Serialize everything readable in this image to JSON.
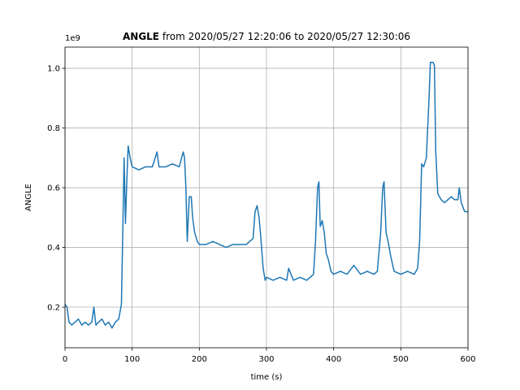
{
  "chart_data": {
    "type": "line",
    "title_bold": "ANGLE",
    "title": "from 2020/05/27 12:20:06 to 2020/05/27 12:30:06",
    "offset_label": "1e9",
    "xlabel": "time (s)",
    "ylabel": "ANGLE",
    "color": "#1f77b4",
    "grid": true,
    "xlim": [
      0,
      600
    ],
    "xticks": [
      0,
      100,
      200,
      300,
      400,
      500,
      600
    ],
    "ylim": [
      0.064,
      1.071
    ],
    "yticks": [
      0.2,
      0.4,
      0.6,
      0.8,
      {
        "value": 1,
        "label": "1.0"
      }
    ],
    "x": [
      0,
      3,
      6,
      10,
      15,
      20,
      25,
      30,
      35,
      40,
      43,
      46,
      50,
      55,
      60,
      65,
      70,
      75,
      80,
      84,
      86,
      88,
      90,
      92,
      94,
      97,
      100,
      110,
      120,
      130,
      137,
      140,
      150,
      160,
      170,
      176,
      178,
      180,
      182,
      185,
      188,
      190,
      193,
      197,
      200,
      210,
      220,
      230,
      240,
      250,
      260,
      270,
      280,
      283,
      286,
      289,
      292,
      295,
      298,
      300,
      310,
      320,
      330,
      333,
      340,
      350,
      360,
      370,
      373,
      376,
      378,
      380,
      383,
      386,
      389,
      392,
      396,
      400,
      410,
      420,
      430,
      440,
      450,
      460,
      465,
      470,
      473,
      475,
      478,
      481,
      485,
      490,
      500,
      510,
      520,
      525,
      528,
      531,
      534,
      538,
      542,
      544,
      548,
      550,
      552,
      555,
      560,
      565,
      570,
      575,
      580,
      585,
      587,
      590,
      595,
      600
    ],
    "values": [
      0.21,
      0.2,
      0.15,
      0.14,
      0.15,
      0.16,
      0.14,
      0.15,
      0.14,
      0.15,
      0.2,
      0.14,
      0.15,
      0.16,
      0.14,
      0.15,
      0.13,
      0.15,
      0.16,
      0.21,
      0.45,
      0.7,
      0.48,
      0.62,
      0.74,
      0.7,
      0.67,
      0.66,
      0.67,
      0.67,
      0.72,
      0.67,
      0.67,
      0.68,
      0.67,
      0.72,
      0.7,
      0.6,
      0.42,
      0.57,
      0.57,
      0.5,
      0.45,
      0.42,
      0.41,
      0.41,
      0.42,
      0.41,
      0.4,
      0.41,
      0.41,
      0.41,
      0.43,
      0.52,
      0.54,
      0.5,
      0.42,
      0.33,
      0.29,
      0.3,
      0.29,
      0.3,
      0.29,
      0.33,
      0.29,
      0.3,
      0.29,
      0.31,
      0.42,
      0.6,
      0.62,
      0.47,
      0.49,
      0.45,
      0.38,
      0.36,
      0.32,
      0.31,
      0.32,
      0.31,
      0.34,
      0.31,
      0.32,
      0.31,
      0.32,
      0.45,
      0.6,
      0.62,
      0.45,
      0.42,
      0.37,
      0.32,
      0.31,
      0.32,
      0.31,
      0.33,
      0.42,
      0.68,
      0.67,
      0.7,
      0.9,
      1.02,
      1.02,
      1.01,
      0.72,
      0.58,
      0.56,
      0.55,
      0.56,
      0.57,
      0.56,
      0.56,
      0.6,
      0.55,
      0.52,
      0.52
    ]
  }
}
